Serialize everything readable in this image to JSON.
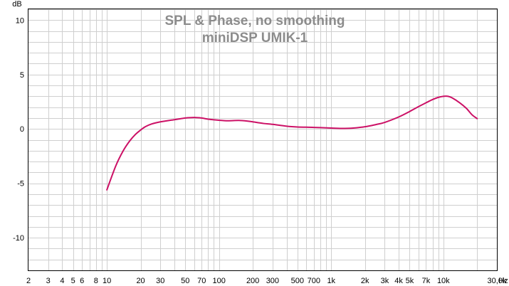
{
  "chart_data": {
    "type": "line",
    "title": "SPL & Phase, no smoothing",
    "subtitle": "miniDSP UMIK-1",
    "xlabel": "Hz",
    "ylabel": "dB",
    "x_scale": "log",
    "xlim": [
      2,
      30000
    ],
    "ylim": [
      -13,
      11
    ],
    "grid": true,
    "legend": "none",
    "x_ticks": [
      {
        "value": 2,
        "label": "2"
      },
      {
        "value": 3,
        "label": "3"
      },
      {
        "value": 4,
        "label": "4"
      },
      {
        "value": 5,
        "label": "5"
      },
      {
        "value": 6,
        "label": "6"
      },
      {
        "value": 8,
        "label": "8"
      },
      {
        "value": 10,
        "label": "10"
      },
      {
        "value": 20,
        "label": "20"
      },
      {
        "value": 30,
        "label": "30"
      },
      {
        "value": 50,
        "label": "50"
      },
      {
        "value": 70,
        "label": "70"
      },
      {
        "value": 100,
        "label": "100"
      },
      {
        "value": 200,
        "label": "200"
      },
      {
        "value": 300,
        "label": "300"
      },
      {
        "value": 500,
        "label": "500"
      },
      {
        "value": 700,
        "label": "700"
      },
      {
        "value": 1000,
        "label": "1k"
      },
      {
        "value": 2000,
        "label": "2k"
      },
      {
        "value": 3000,
        "label": "3k"
      },
      {
        "value": 4000,
        "label": "4k"
      },
      {
        "value": 5000,
        "label": "5k"
      },
      {
        "value": 7000,
        "label": "7k"
      },
      {
        "value": 10000,
        "label": "10k"
      },
      {
        "value": 30000,
        "label": "30,0k"
      }
    ],
    "y_ticks": [
      {
        "value": 10,
        "label": "10"
      },
      {
        "value": 5,
        "label": "5"
      },
      {
        "value": 0,
        "label": "0"
      },
      {
        "value": -5,
        "label": "-5"
      },
      {
        "value": -10,
        "label": "-10"
      }
    ],
    "series": [
      {
        "color": "#cc1166",
        "x": [
          10,
          12,
          14,
          16,
          18,
          20,
          22,
          25,
          30,
          40,
          50,
          60,
          70,
          80,
          100,
          120,
          150,
          180,
          200,
          250,
          300,
          400,
          500,
          700,
          1000,
          1200,
          1500,
          2000,
          2500,
          3000,
          4000,
          5000,
          6000,
          7000,
          8000,
          9000,
          10000,
          11000,
          12000,
          14000,
          16000,
          18000,
          20000
        ],
        "y": [
          -5.6,
          -3.4,
          -2.0,
          -1.1,
          -0.5,
          -0.1,
          0.2,
          0.45,
          0.65,
          0.85,
          1.0,
          1.05,
          1.0,
          0.9,
          0.8,
          0.75,
          0.78,
          0.72,
          0.65,
          0.5,
          0.42,
          0.25,
          0.18,
          0.14,
          0.08,
          0.05,
          0.06,
          0.2,
          0.4,
          0.6,
          1.1,
          1.6,
          2.05,
          2.4,
          2.7,
          2.9,
          3.0,
          3.0,
          2.85,
          2.4,
          1.9,
          1.3,
          0.95
        ]
      }
    ]
  }
}
